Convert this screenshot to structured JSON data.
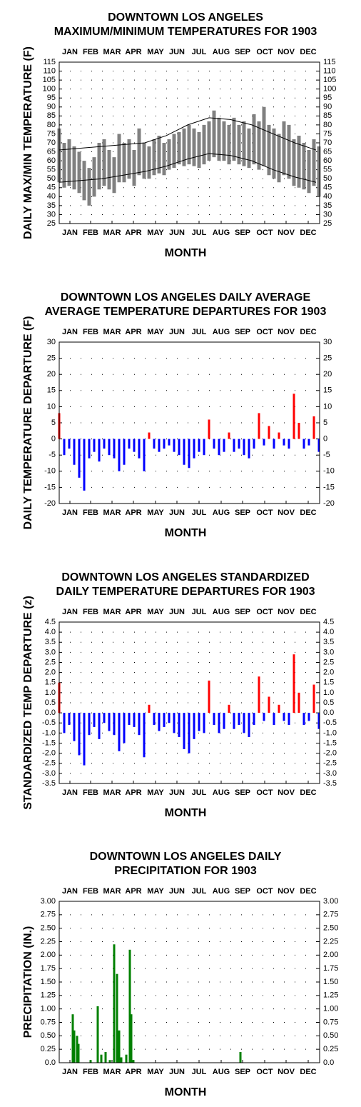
{
  "chart_data": [
    {
      "type": "line",
      "title": [
        "DOWNTOWN LOS ANGELES",
        "MAXIMUM/MINIMUM TEMPERATURES FOR 1903"
      ],
      "ylabel": "DAILY MAX/MIN TEMPERATURE (F)",
      "xlabel": "MONTH",
      "xlim": [
        1,
        366
      ],
      "xticks": [
        {
          "value": 16,
          "label": "JAN"
        },
        {
          "value": 45,
          "label": "FEB"
        },
        {
          "value": 75,
          "label": "MAR"
        },
        {
          "value": 105,
          "label": "APR"
        },
        {
          "value": 136,
          "label": "MAY"
        },
        {
          "value": 166,
          "label": "JUN"
        },
        {
          "value": 197,
          "label": "JUL"
        },
        {
          "value": 228,
          "label": "AUG"
        },
        {
          "value": 258,
          "label": "SEP"
        },
        {
          "value": 289,
          "label": "OCT"
        },
        {
          "value": 319,
          "label": "NOV"
        },
        {
          "value": 350,
          "label": "DEC"
        }
      ],
      "ylim": [
        25,
        115
      ],
      "yticks": [
        115,
        110,
        105,
        100,
        95,
        90,
        85,
        80,
        75,
        70,
        65,
        60,
        55,
        50,
        45,
        40,
        35,
        30,
        25
      ],
      "grid": true,
      "x": [
        1,
        8,
        15,
        22,
        29,
        36,
        43,
        50,
        57,
        64,
        71,
        78,
        85,
        92,
        99,
        106,
        113,
        120,
        127,
        134,
        141,
        148,
        155,
        162,
        169,
        176,
        183,
        190,
        197,
        204,
        211,
        218,
        225,
        232,
        239,
        246,
        253,
        260,
        267,
        274,
        281,
        288,
        295,
        302,
        309,
        316,
        323,
        330,
        337,
        344,
        351,
        358,
        365
      ],
      "series": [
        {
          "color": "#808080",
          "values": [
            78,
            70,
            72,
            68,
            65,
            60,
            56,
            62,
            70,
            72,
            66,
            62,
            75,
            70,
            72,
            66,
            78,
            70,
            68,
            72,
            74,
            70,
            72,
            75,
            76,
            78,
            80,
            78,
            76,
            80,
            82,
            88,
            84,
            82,
            80,
            84,
            80,
            82,
            78,
            86,
            82,
            90,
            80,
            78,
            75,
            82,
            80,
            72,
            74,
            70,
            66,
            72,
            68
          ]
        },
        {
          "color": "#808080",
          "values": [
            48,
            45,
            46,
            44,
            42,
            38,
            35,
            40,
            44,
            46,
            44,
            42,
            48,
            48,
            50,
            46,
            52,
            50,
            50,
            52,
            53,
            52,
            55,
            56,
            58,
            57,
            58,
            57,
            56,
            58,
            60,
            62,
            60,
            60,
            58,
            60,
            58,
            57,
            56,
            58,
            55,
            57,
            52,
            50,
            48,
            52,
            50,
            46,
            45,
            44,
            42,
            46,
            40
          ]
        }
      ],
      "normal_x": [
        1,
        31,
        61,
        91,
        121,
        151,
        181,
        211,
        241,
        271,
        301,
        331,
        361
      ],
      "normal_series": [
        {
          "color": "#000000",
          "values": [
            66,
            67,
            68,
            69,
            70,
            74,
            80,
            84,
            83,
            80,
            75,
            70,
            66
          ]
        },
        {
          "color": "#000000",
          "values": [
            48,
            49,
            50,
            52,
            54,
            57,
            61,
            64,
            63,
            60,
            55,
            51,
            48
          ]
        }
      ]
    },
    {
      "type": "bar",
      "title": [
        "DOWNTOWN LOS ANGELES DAILY AVERAGE",
        "AVERAGE TEMPERATURE DEPARTURES FOR 1903"
      ],
      "ylabel": "DAILY TEMPERATURE DEPARTURE (F)",
      "xlabel": "MONTH",
      "xlim": [
        1,
        366
      ],
      "xticks": [
        {
          "value": 16,
          "label": "JAN"
        },
        {
          "value": 45,
          "label": "FEB"
        },
        {
          "value": 75,
          "label": "MAR"
        },
        {
          "value": 105,
          "label": "APR"
        },
        {
          "value": 136,
          "label": "MAY"
        },
        {
          "value": 166,
          "label": "JUN"
        },
        {
          "value": 197,
          "label": "JUL"
        },
        {
          "value": 228,
          "label": "AUG"
        },
        {
          "value": 258,
          "label": "SEP"
        },
        {
          "value": 289,
          "label": "OCT"
        },
        {
          "value": 319,
          "label": "NOV"
        },
        {
          "value": 350,
          "label": "DEC"
        }
      ],
      "ylim": [
        -20,
        30
      ],
      "yticks": [
        30,
        25,
        20,
        15,
        10,
        5,
        0,
        -5,
        -10,
        -15,
        -20
      ],
      "grid": true,
      "pos_color": "#ff0000",
      "neg_color": "#0000ff",
      "x": [
        1,
        8,
        15,
        22,
        29,
        36,
        43,
        50,
        57,
        64,
        71,
        78,
        85,
        92,
        99,
        106,
        113,
        120,
        127,
        134,
        141,
        148,
        155,
        162,
        169,
        176,
        183,
        190,
        197,
        204,
        211,
        218,
        225,
        232,
        239,
        246,
        253,
        260,
        267,
        274,
        281,
        288,
        295,
        302,
        309,
        316,
        323,
        330,
        337,
        344,
        351,
        358,
        365
      ],
      "values": [
        8,
        -5,
        -3,
        -8,
        -12,
        -16,
        -6,
        -4,
        -7,
        -3,
        -5,
        -6,
        -10,
        -8,
        -3,
        -4,
        -6,
        -10,
        2,
        -3,
        -4,
        -3,
        -2,
        -4,
        -5,
        -8,
        -9,
        -6,
        -4,
        -5,
        6,
        -3,
        -5,
        -4,
        2,
        -4,
        -3,
        -5,
        -6,
        -3,
        8,
        -2,
        4,
        -3,
        2,
        -2,
        -3,
        14,
        5,
        -3,
        -2,
        7,
        -4
      ]
    },
    {
      "type": "bar",
      "title": [
        "DOWNTOWN LOS ANGELES STANDARDIZED",
        "DAILY TEMPERATURE DEPARTURES FOR 1903"
      ],
      "ylabel": "STANDARDIZED TEMP DEPARTURE (z)",
      "xlabel": "MONTH",
      "xlim": [
        1,
        366
      ],
      "xticks": [
        {
          "value": 16,
          "label": "JAN"
        },
        {
          "value": 45,
          "label": "FEB"
        },
        {
          "value": 75,
          "label": "MAR"
        },
        {
          "value": 105,
          "label": "APR"
        },
        {
          "value": 136,
          "label": "MAY"
        },
        {
          "value": 166,
          "label": "JUN"
        },
        {
          "value": 197,
          "label": "JUL"
        },
        {
          "value": 228,
          "label": "AUG"
        },
        {
          "value": 258,
          "label": "SEP"
        },
        {
          "value": 289,
          "label": "OCT"
        },
        {
          "value": 319,
          "label": "NOV"
        },
        {
          "value": 350,
          "label": "DEC"
        }
      ],
      "ylim": [
        -3.5,
        4.5
      ],
      "yticks": [
        4.5,
        {
          "value": 4,
          "label": "4.0"
        },
        3.5,
        {
          "value": 3,
          "label": "3.0"
        },
        2.5,
        {
          "value": 2,
          "label": "2.0"
        },
        1.5,
        {
          "value": 1,
          "label": "1.0"
        },
        0.5,
        {
          "value": 0,
          "label": "0.0"
        },
        -0.5,
        {
          "value": -1,
          "label": "-1.0"
        },
        -1.5,
        {
          "value": -2,
          "label": "-2.0"
        },
        -2.5,
        {
          "value": -3,
          "label": "-3.0"
        },
        -3.5
      ],
      "grid": true,
      "pos_color": "#ff0000",
      "neg_color": "#0000ff",
      "x": [
        1,
        8,
        15,
        22,
        29,
        36,
        43,
        50,
        57,
        64,
        71,
        78,
        85,
        92,
        99,
        106,
        113,
        120,
        127,
        134,
        141,
        148,
        155,
        162,
        169,
        176,
        183,
        190,
        197,
        204,
        211,
        218,
        225,
        232,
        239,
        246,
        253,
        260,
        267,
        274,
        281,
        288,
        295,
        302,
        309,
        316,
        323,
        330,
        337,
        344,
        351,
        358,
        365
      ],
      "values": [
        1.5,
        -1,
        -0.6,
        -1.4,
        -2.1,
        -2.6,
        -1.1,
        -0.7,
        -1.3,
        -0.5,
        -0.9,
        -1.1,
        -1.9,
        -1.5,
        -0.6,
        -0.7,
        -1.1,
        -2.2,
        0.4,
        -0.6,
        -0.9,
        -0.7,
        -0.5,
        -1,
        -1.2,
        -1.8,
        -2,
        -1.3,
        -0.9,
        -1,
        1.6,
        -0.6,
        -1,
        -0.8,
        0.4,
        -0.8,
        -0.6,
        -1,
        -1.2,
        -0.6,
        1.8,
        -0.4,
        0.8,
        -0.6,
        0.4,
        -0.4,
        -0.6,
        2.9,
        1,
        -0.6,
        -0.4,
        1.4,
        -0.8
      ]
    },
    {
      "type": "bar",
      "title": [
        "DOWNTOWN LOS ANGELES DAILY",
        "PRECIPITATION FOR 1903"
      ],
      "ylabel": "PRECIPITATION (IN.)",
      "xlabel": "MONTH",
      "xlim": [
        1,
        366
      ],
      "xticks": [
        {
          "value": 16,
          "label": "JAN"
        },
        {
          "value": 45,
          "label": "FEB"
        },
        {
          "value": 75,
          "label": "MAR"
        },
        {
          "value": 105,
          "label": "APR"
        },
        {
          "value": 136,
          "label": "MAY"
        },
        {
          "value": 166,
          "label": "JUN"
        },
        {
          "value": 197,
          "label": "JUL"
        },
        {
          "value": 228,
          "label": "AUG"
        },
        {
          "value": 258,
          "label": "SEP"
        },
        {
          "value": 289,
          "label": "OCT"
        },
        {
          "value": 319,
          "label": "NOV"
        },
        {
          "value": 350,
          "label": "DEC"
        }
      ],
      "ylim": [
        0,
        3
      ],
      "yticks": [
        {
          "value": 3,
          "label": "3.00"
        },
        2.75,
        {
          "value": 2.5,
          "label": "2.50"
        },
        2.25,
        {
          "value": 2,
          "label": "2.00"
        },
        1.75,
        {
          "value": 1.5,
          "label": "1.50"
        },
        1.25,
        {
          "value": 1,
          "label": "1.00"
        },
        0.75,
        {
          "value": 0.5,
          "label": "0.50"
        },
        0.25,
        {
          "value": 0,
          "label": "0.0"
        }
      ],
      "grid": true,
      "pos_color": "#008000",
      "neg_color": "#008000",
      "x": [
        20,
        22,
        26,
        28,
        45,
        55,
        60,
        66,
        72,
        78,
        82,
        85,
        88,
        95,
        100,
        102,
        105,
        255
      ],
      "values": [
        0.9,
        0.6,
        0.5,
        0.35,
        0.05,
        1.05,
        0.15,
        0.2,
        0.05,
        2.2,
        1.65,
        0.6,
        0.1,
        0.15,
        2.1,
        0.9,
        0.05,
        0.2
      ]
    }
  ]
}
